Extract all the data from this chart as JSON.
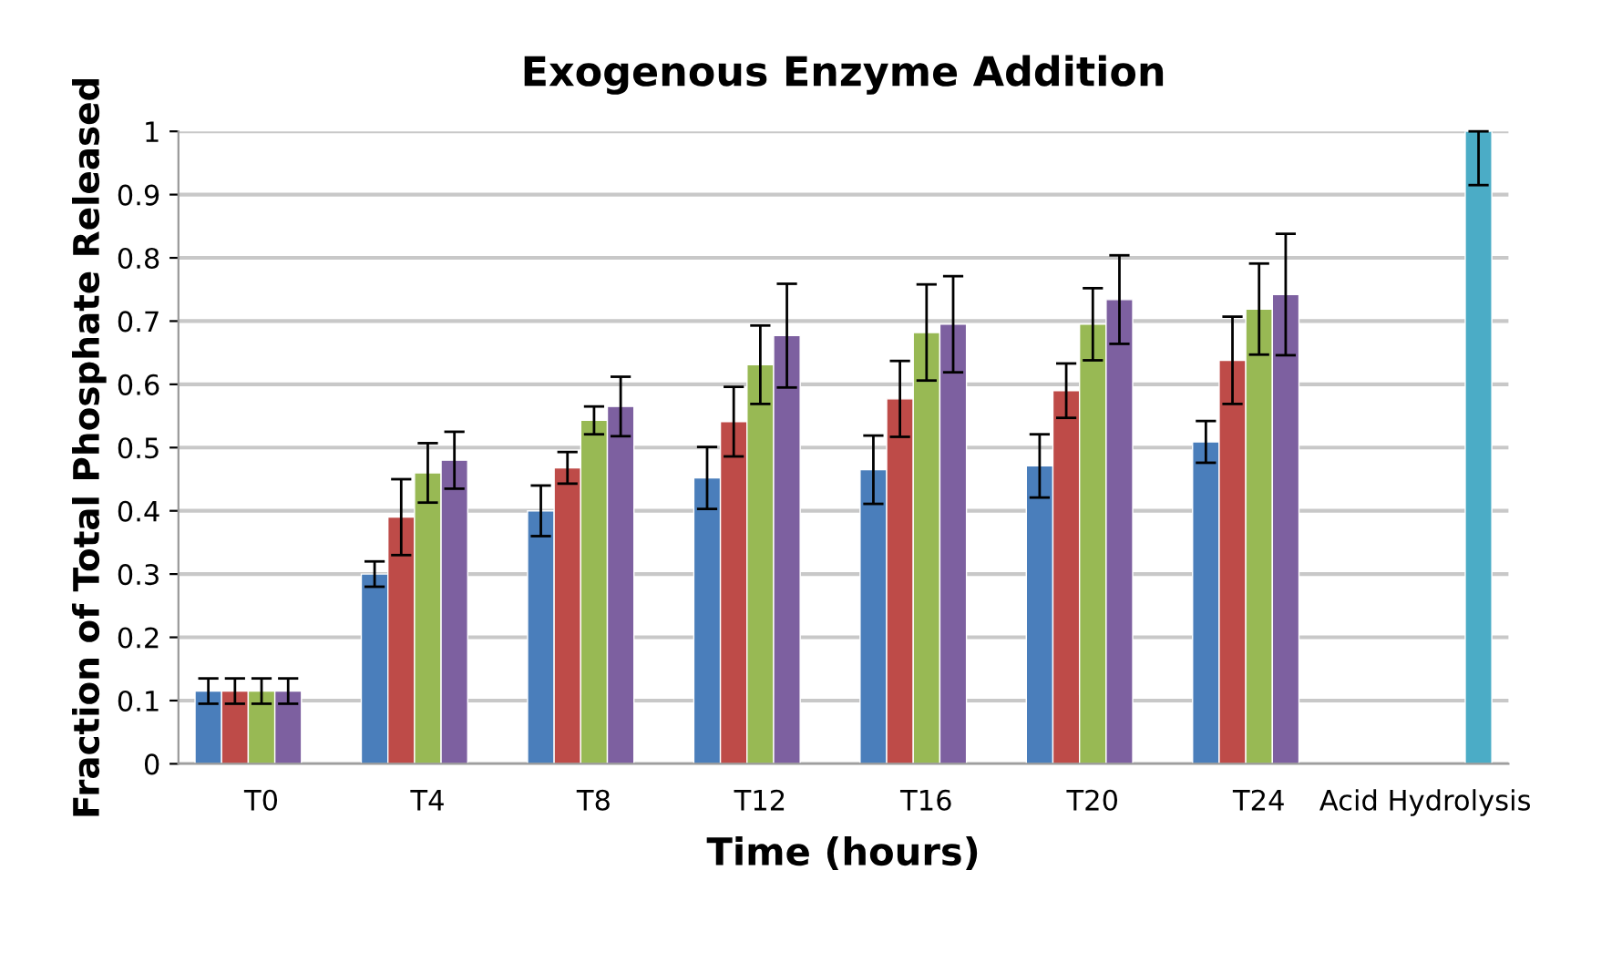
{
  "chart_data": {
    "type": "bar",
    "title": "Exogenous Enzyme Addition",
    "xlabel": "Time (hours)",
    "ylabel": "Fraction of Total Phosphate Released",
    "categories": [
      "T0",
      "T4",
      "T8",
      "T12",
      "T16",
      "T20",
      "T24",
      "Acid Hydrolysis"
    ],
    "series": [
      {
        "color": "#4a7ebb",
        "values": [
          0.115,
          0.3,
          0.4,
          0.452,
          0.465,
          0.471,
          0.509,
          null
        ],
        "errors": [
          0.02,
          0.02,
          0.04,
          0.049,
          0.054,
          0.05,
          0.033,
          null
        ]
      },
      {
        "color": "#be4b48",
        "values": [
          0.115,
          0.39,
          0.468,
          0.541,
          0.577,
          0.59,
          0.638,
          null
        ],
        "errors": [
          0.02,
          0.06,
          0.025,
          0.055,
          0.06,
          0.043,
          0.069,
          null
        ]
      },
      {
        "color": "#98b954",
        "values": [
          0.115,
          0.46,
          0.543,
          0.631,
          0.682,
          0.695,
          0.719,
          null
        ],
        "errors": [
          0.02,
          0.047,
          0.022,
          0.062,
          0.076,
          0.057,
          0.072,
          null
        ]
      },
      {
        "color": "#7d60a0",
        "values": [
          0.115,
          0.48,
          0.565,
          0.677,
          0.695,
          0.734,
          0.742,
          null
        ],
        "errors": [
          0.02,
          0.045,
          0.047,
          0.082,
          0.076,
          0.07,
          0.096,
          null
        ]
      },
      {
        "color": "#4bacc6",
        "values": [
          null,
          null,
          null,
          null,
          null,
          null,
          null,
          1.0
        ],
        "errors": [
          null,
          null,
          null,
          null,
          null,
          null,
          null,
          [
            0.915,
            1.0
          ]
        ]
      }
    ],
    "ylim": [
      0,
      1
    ],
    "yticks": [
      0,
      0.1,
      0.2,
      0.3,
      0.4,
      0.5,
      0.6,
      0.7,
      0.8,
      0.9,
      1
    ],
    "grid": "y",
    "legend": false
  }
}
